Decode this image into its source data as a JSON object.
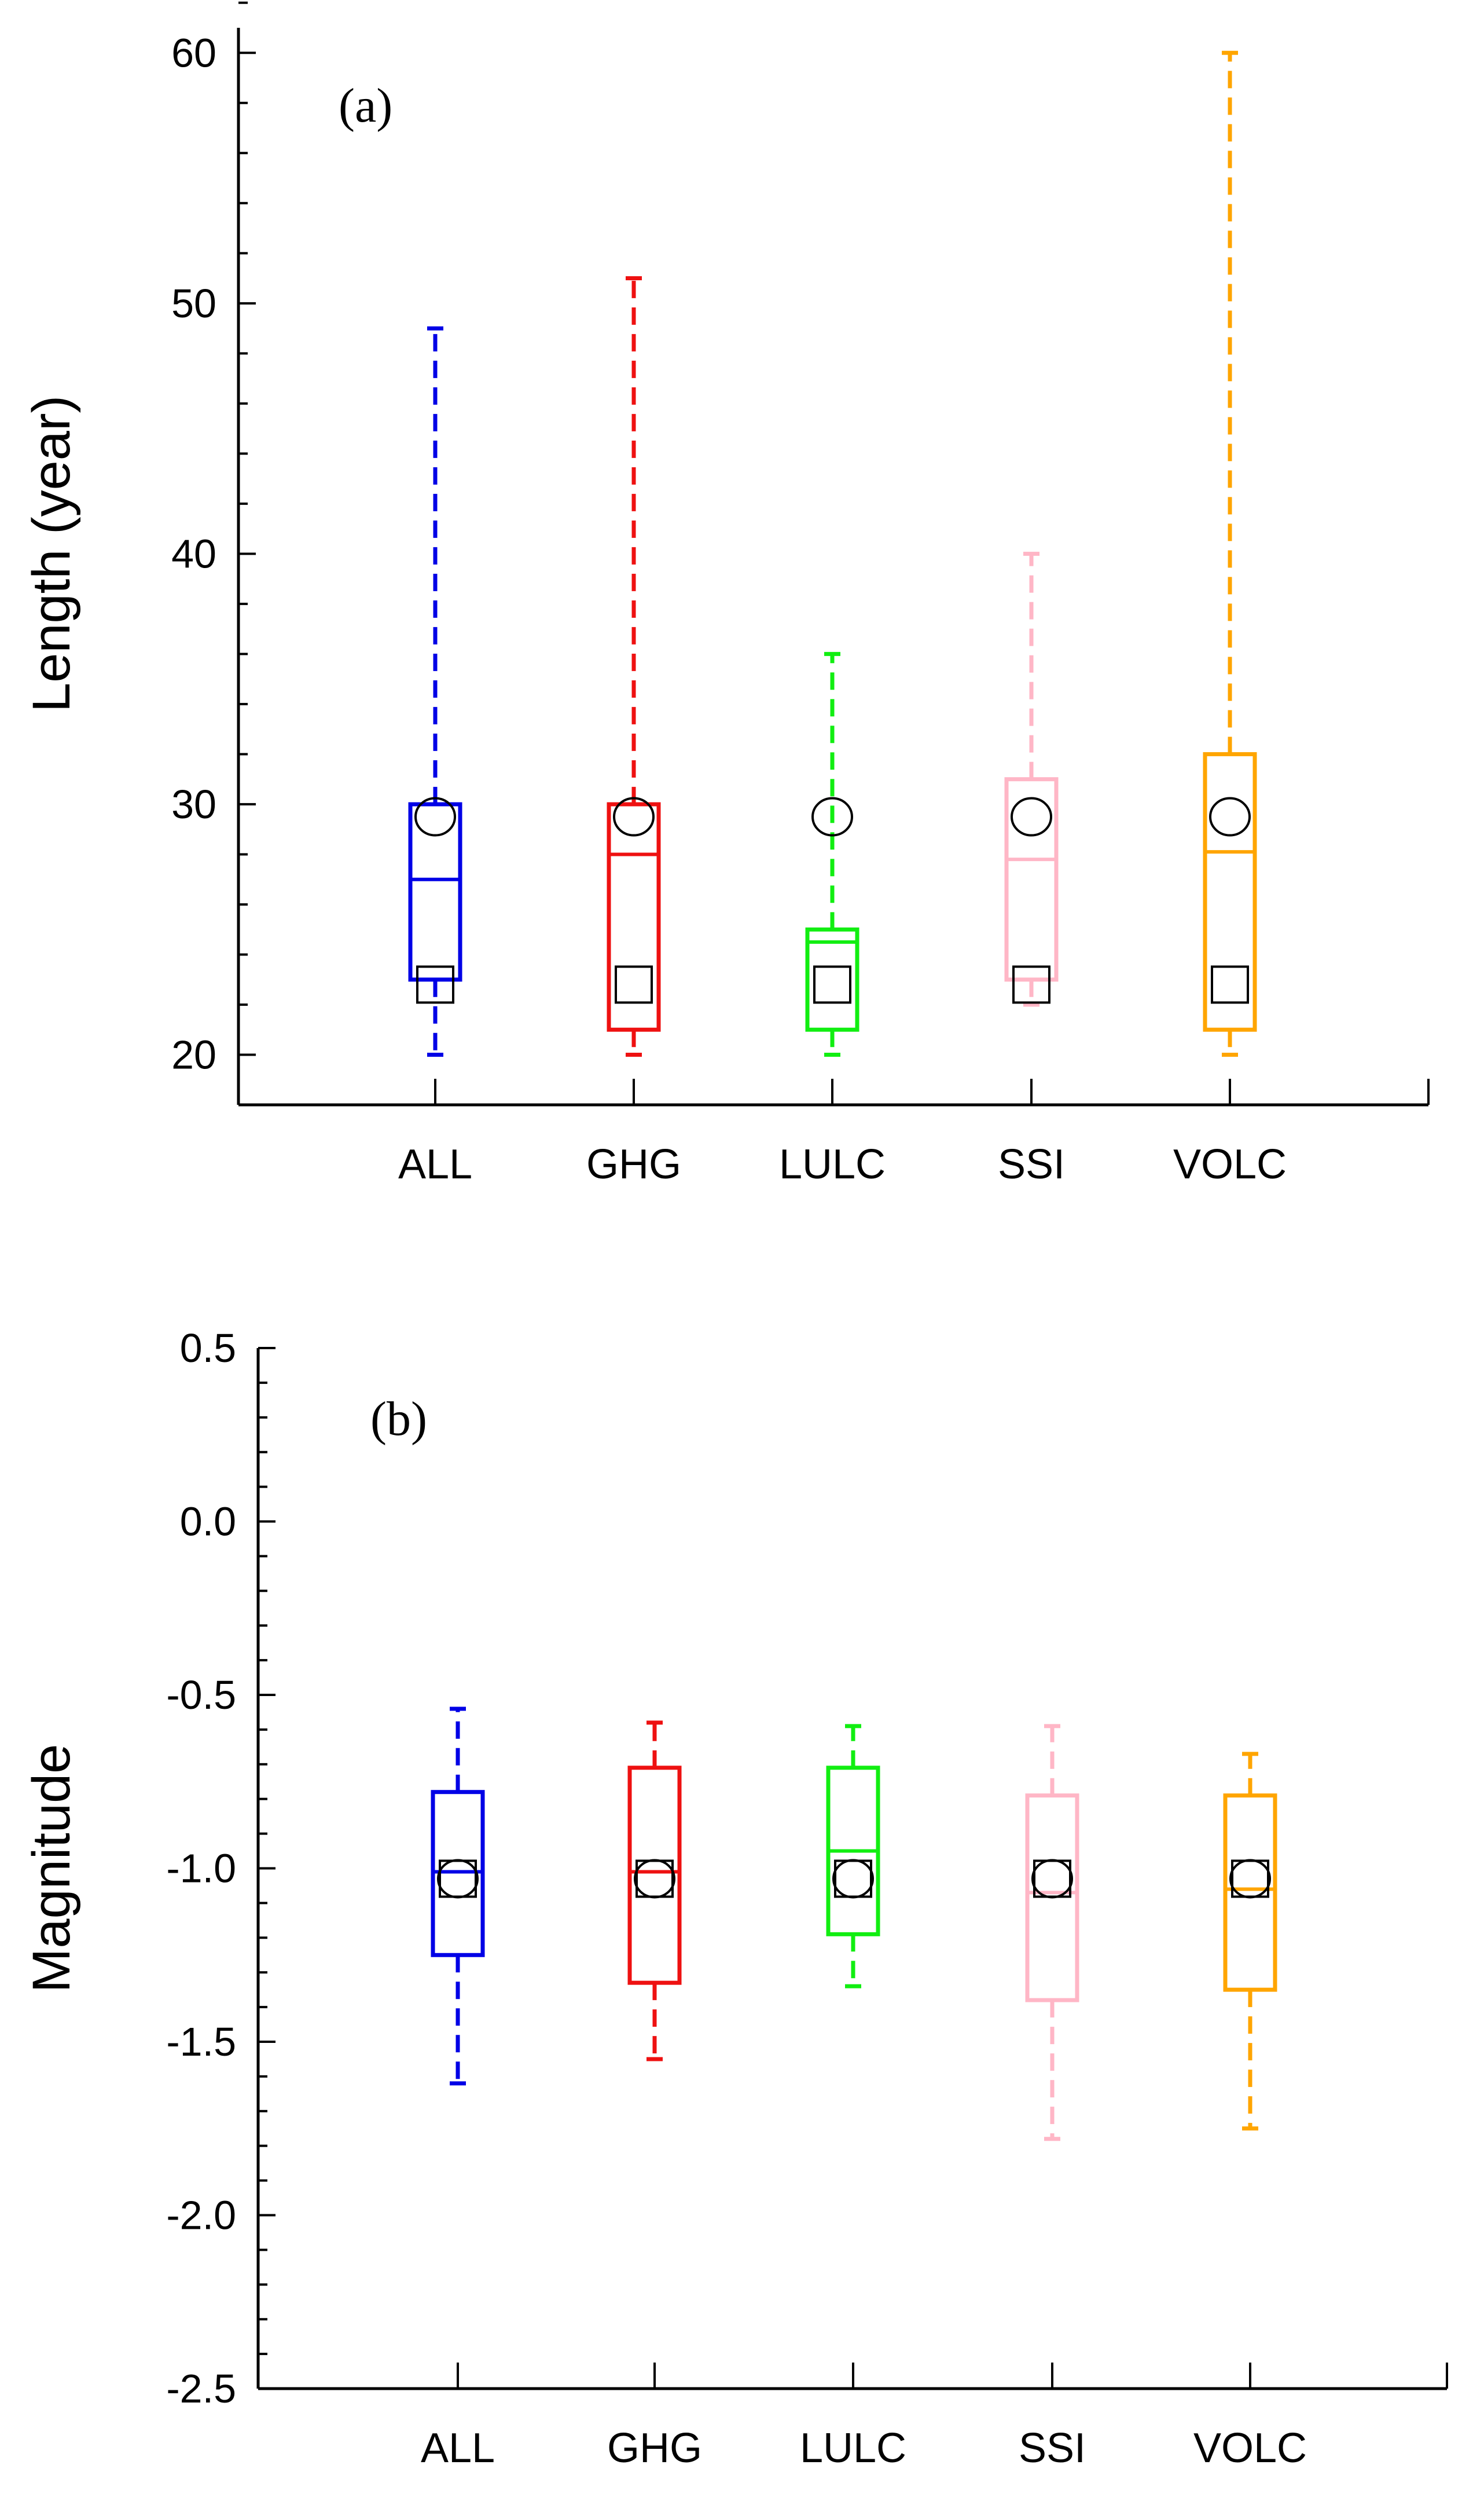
{
  "chart_data": [
    {
      "type": "box",
      "panel_label": "(a)",
      "ylabel": "Length (year)",
      "xlabel": "",
      "ylim": [
        18,
        62
      ],
      "yticks": [
        20,
        30,
        40,
        50,
        60
      ],
      "ytick_labels": [
        "20",
        "30",
        "40",
        "50",
        "60"
      ],
      "categories": [
        "ALL",
        "GHG",
        "LULC",
        "SSI",
        "VOLC"
      ],
      "colors": [
        "#0000e6",
        "#ee1111",
        "#11ee11",
        "#ffb6c6",
        "#ffa500"
      ],
      "boxes": [
        {
          "min": 20,
          "q1": 23,
          "median": 27,
          "q3": 30,
          "max": 49,
          "circle": 29.5,
          "square": 22.8
        },
        {
          "min": 20,
          "q1": 21,
          "median": 28,
          "q3": 30,
          "max": 51,
          "circle": 29.5,
          "square": 22.8
        },
        {
          "min": 20,
          "q1": 21,
          "median": 24.5,
          "q3": 25,
          "max": 36,
          "circle": 29.5,
          "square": 22.8
        },
        {
          "min": 22,
          "q1": 23,
          "median": 27.8,
          "q3": 31,
          "max": 40,
          "circle": 29.5,
          "square": 22.8
        },
        {
          "min": 20,
          "q1": 21,
          "median": 28.1,
          "q3": 32,
          "max": 60,
          "circle": 29.5,
          "square": 22.8
        }
      ]
    },
    {
      "type": "box",
      "panel_label": "(b)",
      "ylabel": "Magnitude",
      "xlabel": "",
      "ylim": [
        -2.5,
        0.5
      ],
      "yticks": [
        0.5,
        0.0,
        -0.5,
        -1.0,
        -1.5,
        -2.0,
        -2.5
      ],
      "ytick_labels": [
        "0.5",
        "0.0",
        "-0.5",
        "-1.0",
        "-1.5",
        "-2.0",
        "-2.5"
      ],
      "categories": [
        "ALL",
        "GHG",
        "LULC",
        "SSI",
        "VOLC"
      ],
      "colors": [
        "#0000e6",
        "#ee1111",
        "#11ee11",
        "#ffb6c6",
        "#ffa500"
      ],
      "boxes": [
        {
          "min": -1.62,
          "q1": -1.25,
          "median": -1.01,
          "q3": -0.78,
          "max": -0.54,
          "circle": -1.03,
          "square": -1.03
        },
        {
          "min": -1.55,
          "q1": -1.33,
          "median": -1.01,
          "q3": -0.71,
          "max": -0.58,
          "circle": -1.03,
          "square": -1.03
        },
        {
          "min": -1.34,
          "q1": -1.19,
          "median": -0.95,
          "q3": -0.71,
          "max": -0.59,
          "circle": -1.03,
          "square": -1.03
        },
        {
          "min": -1.78,
          "q1": -1.38,
          "median": -1.07,
          "q3": -0.79,
          "max": -0.59,
          "circle": -1.03,
          "square": -1.03
        },
        {
          "min": -1.75,
          "q1": -1.35,
          "median": -1.06,
          "q3": -0.79,
          "max": -0.67,
          "circle": -1.03,
          "square": -1.03
        }
      ]
    }
  ]
}
